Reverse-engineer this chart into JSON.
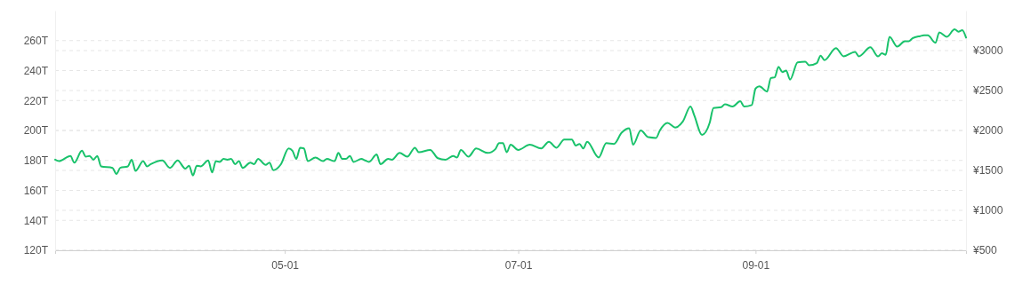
{
  "chart_data": {
    "type": "line",
    "x": [
      "--03-02",
      "--03-03",
      "--03-06",
      "--03-07",
      "--03-09",
      "--03-10",
      "--03-11",
      "--03-12",
      "--03-13",
      "--03-14",
      "--03-17",
      "--03-18",
      "--03-19",
      "--03-21",
      "--03-22",
      "--03-23",
      "--03-25",
      "--03-26",
      "--03-27",
      "--03-30",
      "--04-01",
      "--04-03",
      "--04-05",
      "--04-06",
      "--04-07",
      "--04-08",
      "--04-09",
      "--04-11",
      "--04-12",
      "--04-13",
      "--04-14",
      "--04-15",
      "--04-16",
      "--04-17",
      "--04-18",
      "--04-19",
      "--04-20",
      "--04-22",
      "--04-23",
      "--04-24",
      "--04-26",
      "--04-27",
      "--04-28",
      "--04-30",
      "--05-02",
      "--05-03",
      "--05-04",
      "--05-05",
      "--05-06",
      "--05-07",
      "--05-09",
      "--05-11",
      "--05-12",
      "--05-14",
      "--05-15",
      "--05-16",
      "--05-17",
      "--05-18",
      "--05-19",
      "--05-21",
      "--05-22",
      "--05-23",
      "--05-25",
      "--05-26",
      "--05-28",
      "--05-29",
      "--05-31",
      "--06-02",
      "--06-04",
      "--06-05",
      "--06-08",
      "--06-10",
      "--06-12",
      "--06-14",
      "--06-15",
      "--06-16",
      "--06-18",
      "--06-20",
      "--06-23",
      "--06-25",
      "--06-26",
      "--06-27",
      "--06-28",
      "--06-29",
      "--07-01",
      "--07-04",
      "--07-07",
      "--07-09",
      "--07-11",
      "--07-13",
      "--07-15",
      "--07-16",
      "--07-17",
      "--07-18",
      "--07-19",
      "--07-22",
      "--07-24",
      "--07-26",
      "--07-28",
      "--07-30",
      "--07-31",
      "--08-02",
      "--08-04",
      "--08-06",
      "--08-07",
      "--08-09",
      "--08-11",
      "--08-13",
      "--08-15",
      "--08-16",
      "--08-18",
      "--08-20",
      "--08-21",
      "--08-23",
      "--08-24",
      "--08-26",
      "--08-28",
      "--08-29",
      "--08-31",
      "--09-01",
      "--09-02",
      "--09-04",
      "--09-05",
      "--09-06",
      "--09-07",
      "--09-08",
      "--09-09",
      "--09-10",
      "--09-12",
      "--09-14",
      "--09-15",
      "--09-17",
      "--09-18",
      "--09-19",
      "--09-22",
      "--09-24",
      "--09-27",
      "--09-28",
      "--10-01",
      "--10-03",
      "--10-04",
      "--10-05",
      "--10-06",
      "--10-08",
      "--10-10",
      "--10-11",
      "--10-12",
      "--10-14",
      "--10-15",
      "--10-16",
      "--10-18",
      "--10-19",
      "--10-21",
      "--10-23",
      "--10-24",
      "--10-25",
      "--10-26"
    ],
    "series": [
      {
        "color": "#19c26b",
        "values": [
          180.5,
          179.5,
          183,
          178.5,
          186.5,
          182.5,
          183,
          180.5,
          183,
          176,
          175,
          171,
          175,
          176,
          180.5,
          173,
          179.5,
          176,
          177.5,
          180,
          175,
          180,
          174.5,
          176.5,
          170,
          176.5,
          176,
          180,
          172,
          179.5,
          179,
          181,
          180.5,
          181,
          177.5,
          179.5,
          175,
          178.5,
          177.5,
          181,
          177,
          178.5,
          173.5,
          177.5,
          188,
          186.5,
          181,
          188.5,
          188,
          179.5,
          182,
          179.5,
          181,
          179.5,
          185,
          181,
          181,
          183,
          179,
          181,
          180,
          179,
          184,
          177.5,
          181,
          180.5,
          185,
          182.5,
          188.5,
          185.5,
          187,
          181.5,
          180.5,
          183,
          182,
          187,
          182.5,
          188,
          185,
          187.5,
          191.5,
          191.5,
          185.5,
          190.5,
          187,
          190.5,
          188,
          192.5,
          188.5,
          194,
          194,
          190,
          191,
          188,
          192.5,
          182,
          191.5,
          191,
          198.5,
          201.5,
          190.5,
          200,
          195.5,
          195,
          200,
          205,
          202,
          206,
          216,
          210,
          197,
          205,
          215,
          215.5,
          217.5,
          216,
          219.5,
          216,
          217,
          228,
          229.5,
          226,
          235,
          235.5,
          242.5,
          239,
          240,
          234,
          245.5,
          246,
          243.5,
          245,
          250,
          247,
          255,
          249.5,
          252.5,
          249.5,
          255.5,
          249.5,
          251.5,
          250.5,
          262.5,
          256,
          259.5,
          259.5,
          261.5,
          263,
          263.5,
          263.5,
          258.5,
          265.5,
          262.5,
          267.5,
          266,
          267,
          262
        ]
      }
    ],
    "xlim": [
      "--03-02",
      "--10-26"
    ],
    "xticks": [
      {
        "value": "--05-01",
        "label": "05-01"
      },
      {
        "value": "--07-01",
        "label": "07-01"
      },
      {
        "value": "--09-01",
        "label": "09-01"
      }
    ],
    "ylim": [
      120,
      280
    ],
    "yticks": [
      {
        "value": 120,
        "label": "120T"
      },
      {
        "value": 140,
        "label": "140T"
      },
      {
        "value": 160,
        "label": "160T"
      },
      {
        "value": 180,
        "label": "180T"
      },
      {
        "value": 200,
        "label": "200T"
      },
      {
        "value": 220,
        "label": "220T"
      },
      {
        "value": 240,
        "label": "240T"
      },
      {
        "value": 260,
        "label": "260T"
      }
    ],
    "y2lim": [
      500,
      3500
    ],
    "y2ticks": [
      {
        "value": 500,
        "label": "¥500"
      },
      {
        "value": 1000,
        "label": "¥1000"
      },
      {
        "value": 1500,
        "label": "¥1500"
      },
      {
        "value": 2000,
        "label": "¥2000"
      },
      {
        "value": 2500,
        "label": "¥2500"
      },
      {
        "value": 3000,
        "label": "¥3000"
      }
    ],
    "grid": "y",
    "line_style": "solid",
    "marker": "none"
  }
}
